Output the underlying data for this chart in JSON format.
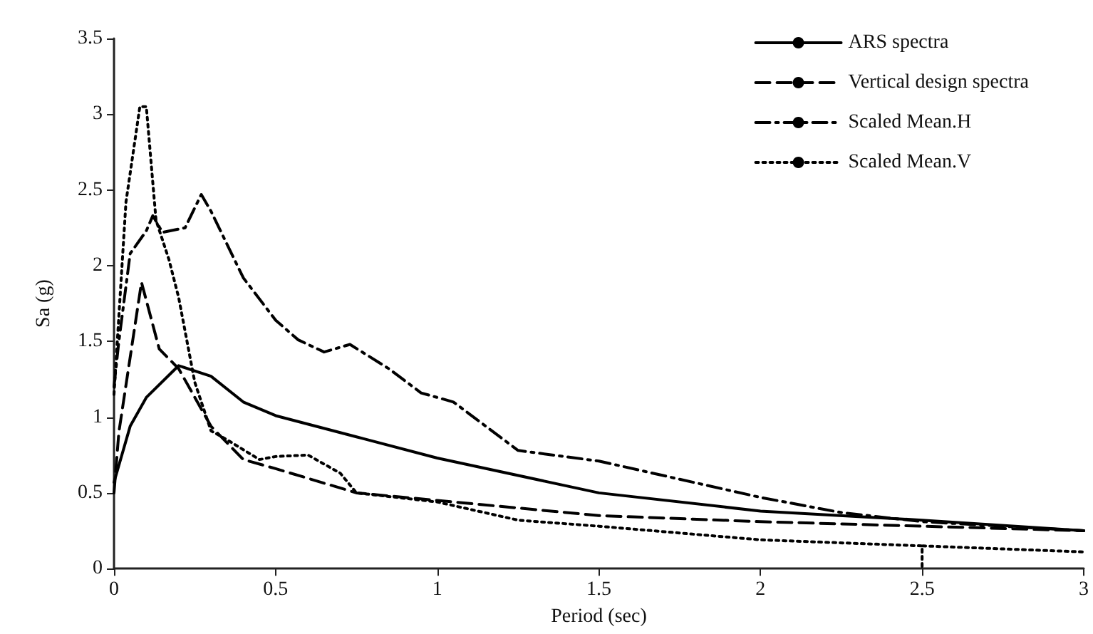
{
  "chart_data": {
    "type": "line",
    "xlabel": "Period (sec)",
    "ylabel": "Sa (g)",
    "xlim": [
      0,
      3
    ],
    "xticks": [
      0,
      0.5,
      1,
      1.5,
      2,
      2.5,
      3
    ],
    "ylim": [
      0,
      3.5
    ],
    "yticks": [
      0,
      0.5,
      1,
      1.5,
      2,
      2.5,
      3,
      3.5
    ],
    "grid": false,
    "legend": "top right",
    "marker": "none",
    "series": [
      {
        "name": "ARS spectra",
        "color": "#000000",
        "line_style": "solid",
        "x": [
          0,
          0.05,
          0.1,
          0.2,
          0.3,
          0.4,
          0.5,
          0.75,
          1,
          1.5,
          2,
          2.5,
          3
        ],
        "values": [
          0.57,
          0.94,
          1.13,
          1.34,
          1.27,
          1.1,
          1.01,
          0.87,
          0.73,
          0.5,
          0.38,
          0.32,
          0.25
        ]
      },
      {
        "name": "Vertical design spectra",
        "color": "#000000",
        "line_style": "dashed",
        "x": [
          0,
          0.015,
          0.085,
          0.14,
          0.2,
          0.3,
          0.4,
          0.5,
          0.75,
          1,
          1.5,
          2,
          2.5,
          3
        ],
        "values": [
          0.5,
          0.9,
          1.89,
          1.45,
          1.32,
          0.94,
          0.72,
          0.66,
          0.5,
          0.45,
          0.35,
          0.31,
          0.28,
          0.25
        ]
      },
      {
        "name": "Scaled Mean.H",
        "color": "#000000",
        "line_style": "dashdot",
        "x": [
          0,
          0.015,
          0.05,
          0.1,
          0.12,
          0.15,
          0.22,
          0.27,
          0.3,
          0.4,
          0.5,
          0.57,
          0.65,
          0.73,
          0.85,
          0.95,
          1.05,
          1.1,
          1.25,
          1.5,
          1.75,
          2,
          2.25,
          2.5,
          3
        ],
        "values": [
          1.2,
          1.5,
          2.08,
          2.23,
          2.33,
          2.22,
          2.25,
          2.47,
          2.36,
          1.92,
          1.64,
          1.51,
          1.43,
          1.48,
          1.32,
          1.16,
          1.1,
          1.02,
          0.78,
          0.71,
          0.59,
          0.47,
          0.37,
          0.31,
          0.25
        ]
      },
      {
        "name": "Scaled Mean.V",
        "color": "#000000",
        "line_style": "dotted",
        "x": [
          0,
          0.037,
          0.08,
          0.1,
          0.13,
          0.17,
          0.2,
          0.25,
          0.3,
          0.35,
          0.45,
          0.5,
          0.6,
          0.7,
          0.75,
          1,
          1.25,
          1.5,
          2,
          2.5,
          2.5,
          2.5,
          3
        ],
        "values": [
          1.15,
          2.42,
          3.05,
          3.05,
          2.3,
          2.04,
          1.79,
          1.23,
          0.91,
          0.85,
          0.72,
          0.74,
          0.75,
          0.63,
          0.5,
          0.44,
          0.32,
          0.28,
          0.19,
          0.15,
          0,
          0.15,
          0.11
        ]
      }
    ]
  }
}
